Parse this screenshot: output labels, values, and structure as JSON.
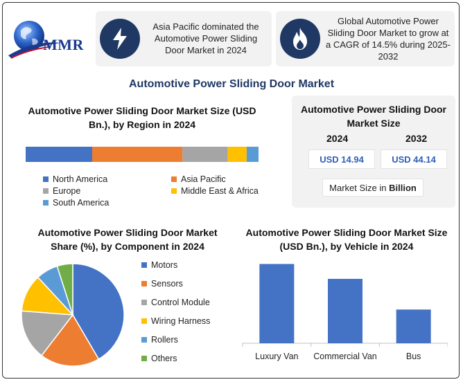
{
  "brand": {
    "logo_text": "MMR"
  },
  "cards": [
    {
      "icon": "lightning-icon",
      "text": "Asia Pacific dominated the Automotive Power Sliding Door Market in 2024"
    },
    {
      "icon": "flame-icon",
      "text": "Global Automotive Power Sliding Door Market to grow at a CAGR of 14.5% during 2025-2032"
    }
  ],
  "main_title": "Automotive Power Sliding Door Market",
  "market_size": {
    "title": "Automotive Power Sliding Door Market Size",
    "year_a": "2024",
    "year_b": "2032",
    "value_a": "USD 14.94",
    "value_b": "USD 44.14",
    "unit_label_prefix": "Market Size in ",
    "unit_label_bold": "Billion"
  },
  "colors": {
    "blue": "#4472c4",
    "orange": "#ed7d31",
    "gray": "#a5a5a5",
    "yellow": "#ffc000",
    "lightblue": "#5b9bd5",
    "green": "#70ad47",
    "navy": "#1f3864"
  },
  "chart_data": [
    {
      "type": "bar",
      "stacked": true,
      "orientation": "horizontal",
      "title": "Automotive Power Sliding Door Market Size (USD Bn.), by Region in 2024",
      "series": [
        {
          "name": "North America",
          "value": 28,
          "color": "#4472c4"
        },
        {
          "name": "Asia Pacific",
          "value": 38,
          "color": "#ed7d31"
        },
        {
          "name": "Europe",
          "value": 19,
          "color": "#a5a5a5"
        },
        {
          "name": "Middle East & Africa",
          "value": 8,
          "color": "#ffc000"
        },
        {
          "name": "South America",
          "value": 5,
          "color": "#5b9bd5"
        }
      ],
      "legend": "bottom"
    },
    {
      "type": "pie",
      "title": "Automotive Power Sliding Door Market Share (%), by Component in 2024",
      "slices": [
        {
          "name": "Motors",
          "value": 42,
          "color": "#4472c4"
        },
        {
          "name": "Sensors",
          "value": 19,
          "color": "#ed7d31"
        },
        {
          "name": "Control Module",
          "value": 16,
          "color": "#a5a5a5"
        },
        {
          "name": "Wiring Harness",
          "value": 12,
          "color": "#ffc000"
        },
        {
          "name": "Rollers",
          "value": 7,
          "color": "#5b9bd5"
        },
        {
          "name": "Others",
          "value": 5,
          "color": "#70ad47"
        }
      ],
      "legend": "right"
    },
    {
      "type": "bar",
      "title": "Automotive Power Sliding Door Market Size (USD Bn.), by Vehicle in 2024",
      "categories": [
        "Luxury Van",
        "Commercial Van",
        "Bus"
      ],
      "values": [
        8,
        6.5,
        3.4
      ],
      "ylim": [
        0,
        8.8
      ],
      "color": "#4472c4"
    }
  ]
}
